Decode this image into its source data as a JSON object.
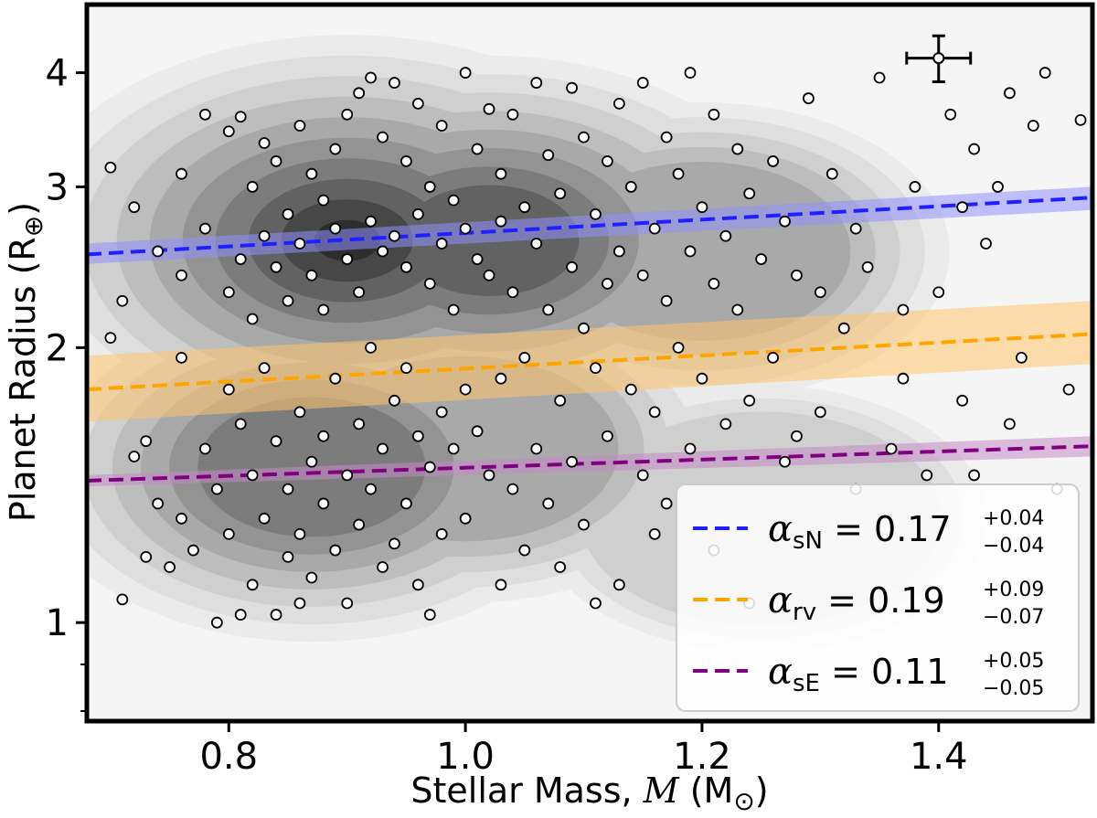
{
  "chart_data": {
    "type": "scatter",
    "title": "",
    "xlabel_prefix": "Stellar Mass, ",
    "xlabel_symbol": "M",
    "xlabel_unit": " (M",
    "xlabel_unit_symbol": "⊙",
    "xlabel_suffix": ")",
    "ylabel": "Planet Radius (R",
    "ylabel_symbol": "⊕",
    "ylabel_suffix": ")",
    "xlim": [
      0.68,
      1.53
    ],
    "ylim": [
      0.78,
      4.75
    ],
    "yscale": "log",
    "xticks": [
      {
        "value": 0.8,
        "label": "0.8"
      },
      {
        "value": 1.0,
        "label": "1.0"
      },
      {
        "value": 1.2,
        "label": "1.2"
      },
      {
        "value": 1.4,
        "label": "1.4"
      }
    ],
    "yticks": [
      {
        "value": 1,
        "label": "1"
      },
      {
        "value": 2,
        "label": "2"
      },
      {
        "value": 3,
        "label": "3"
      },
      {
        "value": 4,
        "label": "4"
      }
    ],
    "yminor_ticks": [
      0.8,
      0.9
    ],
    "density_centers": [
      {
        "x": 0.9,
        "y": 2.62,
        "weight": 1.0
      },
      {
        "x": 1.02,
        "y": 2.62,
        "weight": 0.8
      },
      {
        "x": 0.87,
        "y": 1.48,
        "weight": 0.7
      },
      {
        "x": 1.0,
        "y": 1.55,
        "weight": 0.5
      },
      {
        "x": 1.2,
        "y": 2.55,
        "weight": 0.45
      },
      {
        "x": 1.25,
        "y": 1.3,
        "weight": 0.3
      }
    ],
    "series": [
      {
        "name": "sN",
        "label_symbol": "α",
        "label_sub": "sN",
        "label_eq": " = 0.17",
        "label_sup": "+0.04",
        "label_sub2": "−0.04",
        "color": "#1f1fff",
        "band_color": "#8f8fff",
        "x": [
          0.68,
          1.53
        ],
        "y": [
          2.53,
          2.92
        ],
        "band_lo": [
          2.47,
          2.83
        ],
        "band_hi": [
          2.6,
          3.0
        ]
      },
      {
        "name": "rv",
        "label_symbol": "α",
        "label_sub": "rv",
        "label_eq": " = 0.19",
        "label_sup": "+0.09",
        "label_sub2": "−0.07",
        "color": "#ffa500",
        "band_color": "#ffc56a",
        "x": [
          0.68,
          1.53
        ],
        "y": [
          1.8,
          2.07
        ],
        "band_lo": [
          1.66,
          1.92
        ],
        "band_hi": [
          1.96,
          2.25
        ]
      },
      {
        "name": "sE",
        "label_symbol": "α",
        "label_sub": "sE",
        "label_eq": " = 0.11",
        "label_sup": "+0.05",
        "label_sub2": "−0.05",
        "color": "#800080",
        "band_color": "#c58ac5",
        "x": [
          0.68,
          1.53
        ],
        "y": [
          1.43,
          1.56
        ],
        "band_lo": [
          1.41,
          1.52
        ],
        "band_hi": [
          1.45,
          1.6
        ]
      }
    ],
    "points": [
      [
        0.7,
        3.15
      ],
      [
        0.72,
        2.85
      ],
      [
        0.74,
        2.55
      ],
      [
        0.71,
        2.25
      ],
      [
        0.7,
        2.05
      ],
      [
        0.73,
        1.58
      ],
      [
        0.72,
        1.52
      ],
      [
        0.74,
        1.35
      ],
      [
        0.73,
        1.18
      ],
      [
        0.71,
        1.06
      ],
      [
        0.76,
        3.1
      ],
      [
        0.76,
        2.4
      ],
      [
        0.76,
        1.95
      ],
      [
        0.76,
        1.3
      ],
      [
        0.77,
        1.2
      ],
      [
        0.78,
        3.6
      ],
      [
        0.78,
        2.7
      ],
      [
        0.78,
        1.55
      ],
      [
        0.79,
        1.4
      ],
      [
        0.8,
        3.45
      ],
      [
        0.8,
        2.3
      ],
      [
        0.8,
        1.8
      ],
      [
        0.8,
        1.25
      ],
      [
        0.81,
        3.58
      ],
      [
        0.81,
        2.5
      ],
      [
        0.81,
        1.65
      ],
      [
        0.81,
        1.02
      ],
      [
        0.82,
        3.0
      ],
      [
        0.82,
        2.15
      ],
      [
        0.82,
        1.45
      ],
      [
        0.82,
        1.1
      ],
      [
        0.83,
        3.35
      ],
      [
        0.83,
        2.65
      ],
      [
        0.83,
        1.9
      ],
      [
        0.83,
        1.3
      ],
      [
        0.84,
        3.2
      ],
      [
        0.84,
        2.45
      ],
      [
        0.84,
        1.58
      ],
      [
        0.84,
        1.02
      ],
      [
        0.85,
        2.8
      ],
      [
        0.85,
        2.25
      ],
      [
        0.85,
        1.4
      ],
      [
        0.85,
        1.18
      ],
      [
        0.86,
        3.5
      ],
      [
        0.86,
        2.6
      ],
      [
        0.86,
        1.7
      ],
      [
        0.86,
        1.25
      ],
      [
        0.87,
        3.1
      ],
      [
        0.87,
        2.4
      ],
      [
        0.87,
        1.5
      ],
      [
        0.87,
        1.12
      ],
      [
        0.88,
        2.9
      ],
      [
        0.88,
        2.2
      ],
      [
        0.88,
        1.6
      ],
      [
        0.88,
        1.35
      ],
      [
        0.89,
        3.3
      ],
      [
        0.89,
        2.7
      ],
      [
        0.89,
        1.85
      ],
      [
        0.89,
        1.2
      ],
      [
        0.9,
        3.6
      ],
      [
        0.9,
        2.5
      ],
      [
        0.9,
        1.45
      ],
      [
        0.9,
        1.05
      ],
      [
        0.91,
        3.8
      ],
      [
        0.91,
        2.3
      ],
      [
        0.91,
        1.65
      ],
      [
        0.91,
        1.28
      ],
      [
        0.92,
        3.95
      ],
      [
        0.92,
        2.75
      ],
      [
        0.92,
        2.0
      ],
      [
        0.92,
        1.4
      ],
      [
        0.93,
        3.4
      ],
      [
        0.93,
        2.55
      ],
      [
        0.93,
        1.55
      ],
      [
        0.93,
        1.15
      ],
      [
        0.94,
        3.9
      ],
      [
        0.94,
        2.65
      ],
      [
        0.94,
        1.75
      ],
      [
        0.94,
        1.22
      ],
      [
        0.95,
        3.2
      ],
      [
        0.95,
        2.45
      ],
      [
        0.95,
        1.9
      ],
      [
        0.95,
        1.35
      ],
      [
        0.96,
        3.7
      ],
      [
        0.96,
        2.8
      ],
      [
        0.96,
        1.6
      ],
      [
        0.96,
        1.1
      ],
      [
        0.97,
        3.0
      ],
      [
        0.97,
        2.35
      ],
      [
        0.97,
        1.48
      ],
      [
        0.98,
        3.5
      ],
      [
        0.98,
        2.6
      ],
      [
        0.98,
        1.7
      ],
      [
        0.98,
        1.25
      ],
      [
        0.99,
        2.9
      ],
      [
        0.99,
        2.2
      ],
      [
        0.99,
        1.55
      ],
      [
        1.0,
        4.0
      ],
      [
        1.0,
        2.7
      ],
      [
        1.0,
        1.8
      ],
      [
        1.0,
        1.3
      ],
      [
        1.01,
        3.3
      ],
      [
        1.01,
        2.5
      ],
      [
        1.01,
        1.62
      ],
      [
        1.02,
        3.65
      ],
      [
        1.02,
        2.4
      ],
      [
        1.02,
        1.45
      ],
      [
        1.03,
        3.1
      ],
      [
        1.03,
        2.75
      ],
      [
        1.03,
        1.85
      ],
      [
        1.04,
        3.6
      ],
      [
        1.04,
        2.3
      ],
      [
        1.04,
        1.4
      ],
      [
        1.05,
        2.85
      ],
      [
        1.05,
        1.95
      ],
      [
        1.05,
        1.2
      ],
      [
        1.06,
        3.9
      ],
      [
        1.06,
        2.6
      ],
      [
        1.06,
        1.55
      ],
      [
        1.07,
        3.25
      ],
      [
        1.07,
        2.2
      ],
      [
        1.07,
        1.35
      ],
      [
        1.08,
        2.95
      ],
      [
        1.08,
        1.75
      ],
      [
        1.08,
        1.15
      ],
      [
        1.09,
        3.85
      ],
      [
        1.09,
        2.45
      ],
      [
        1.09,
        1.5
      ],
      [
        1.1,
        3.4
      ],
      [
        1.1,
        2.1
      ],
      [
        1.1,
        1.28
      ],
      [
        1.11,
        2.8
      ],
      [
        1.11,
        1.9
      ],
      [
        1.12,
        3.2
      ],
      [
        1.12,
        2.35
      ],
      [
        1.12,
        1.6
      ],
      [
        1.13,
        3.7
      ],
      [
        1.13,
        2.55
      ],
      [
        1.13,
        1.1
      ],
      [
        1.14,
        3.0
      ],
      [
        1.14,
        1.8
      ],
      [
        1.15,
        3.9
      ],
      [
        1.15,
        2.4
      ],
      [
        1.15,
        1.45
      ],
      [
        1.16,
        2.7
      ],
      [
        1.16,
        1.7
      ],
      [
        1.17,
        3.4
      ],
      [
        1.17,
        2.25
      ],
      [
        1.17,
        1.35
      ],
      [
        1.18,
        3.1
      ],
      [
        1.18,
        2.0
      ],
      [
        1.19,
        4.0
      ],
      [
        1.19,
        2.55
      ],
      [
        1.19,
        1.55
      ],
      [
        1.2,
        2.85
      ],
      [
        1.2,
        1.85
      ],
      [
        1.21,
        3.6
      ],
      [
        1.21,
        2.35
      ],
      [
        1.22,
        2.65
      ],
      [
        1.22,
        1.65
      ],
      [
        1.23,
        3.3
      ],
      [
        1.23,
        2.2
      ],
      [
        1.24,
        2.95
      ],
      [
        1.24,
        1.75
      ],
      [
        1.25,
        2.5
      ],
      [
        1.26,
        3.2
      ],
      [
        1.26,
        1.95
      ],
      [
        1.27,
        2.75
      ],
      [
        1.28,
        2.4
      ],
      [
        1.28,
        1.6
      ],
      [
        1.29,
        3.75
      ],
      [
        1.3,
        2.3
      ],
      [
        1.3,
        1.7
      ],
      [
        1.31,
        3.1
      ],
      [
        1.32,
        2.1
      ],
      [
        1.33,
        1.4
      ],
      [
        1.34,
        2.45
      ],
      [
        1.35,
        3.95
      ],
      [
        1.36,
        1.55
      ],
      [
        1.37,
        2.2
      ],
      [
        1.38,
        3.0
      ],
      [
        1.39,
        1.45
      ],
      [
        1.4,
        2.3
      ],
      [
        1.41,
        3.6
      ],
      [
        1.42,
        1.75
      ],
      [
        1.43,
        1.45
      ],
      [
        1.44,
        2.6
      ],
      [
        1.45,
        3.0
      ],
      [
        1.46,
        3.8
      ],
      [
        1.47,
        1.95
      ],
      [
        1.48,
        3.5
      ],
      [
        1.49,
        4.0
      ],
      [
        1.5,
        1.4
      ],
      [
        1.51,
        1.8
      ],
      [
        1.52,
        3.55
      ],
      [
        1.46,
        1.65
      ],
      [
        1.42,
        2.85
      ],
      [
        1.37,
        1.85
      ],
      [
        1.33,
        2.7
      ],
      [
        1.27,
        1.5
      ],
      [
        1.16,
        1.25
      ],
      [
        1.21,
        1.2
      ],
      [
        1.24,
        1.05
      ],
      [
        1.11,
        1.05
      ],
      [
        1.03,
        1.1
      ],
      [
        0.97,
        1.02
      ],
      [
        0.86,
        1.05
      ],
      [
        0.79,
        1.0
      ],
      [
        0.75,
        1.15
      ],
      [
        1.43,
        3.3
      ]
    ],
    "errorbar": {
      "x": 1.4,
      "y": 4.15,
      "xerr": 0.027,
      "yerr_lo": 0.24,
      "yerr_hi": 0.24
    }
  }
}
